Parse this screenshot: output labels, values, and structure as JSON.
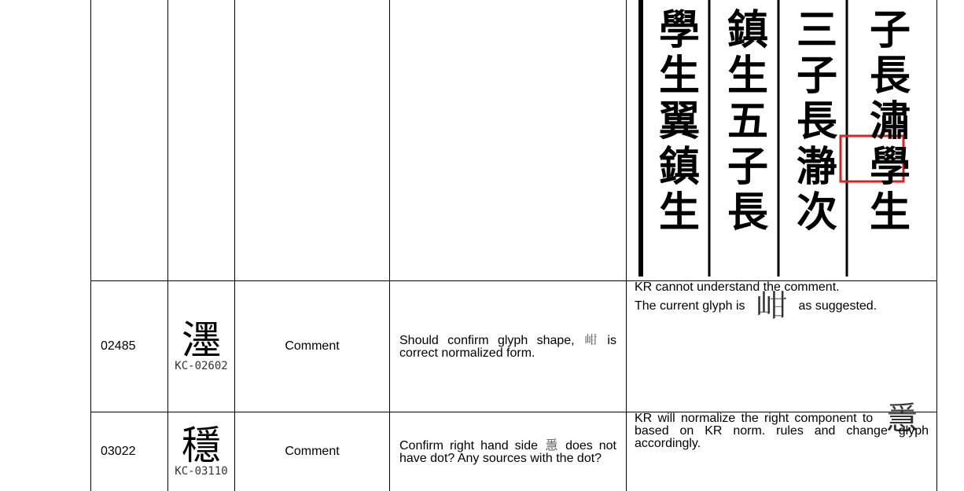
{
  "image_cell": {
    "columns": [
      "學生翼鎮生",
      "鎮生五子長",
      "三子長瀞次",
      "子長潚學生"
    ]
  },
  "rows": [
    {
      "id": "02485",
      "glyph": "濹",
      "code": "KC-02602",
      "type": "Comment",
      "comment": [
        "Should confirm glyph shape,",
        "𡶑",
        "is correct normalized form."
      ],
      "response": [
        "KR cannot understand the comment.",
        "The current glyph is",
        "𡶑",
        "as suggested."
      ]
    },
    {
      "id": "03022",
      "glyph": "穩",
      "code": "KC-03110",
      "type": "Comment",
      "comment": [
        "Confirm right hand side",
        "㥯",
        "does not have dot? Any sources with the dot?"
      ],
      "response": [
        "KR will normalize the right component to",
        "㥯",
        "based on KR norm. rules and change glyph accordingly."
      ]
    }
  ]
}
